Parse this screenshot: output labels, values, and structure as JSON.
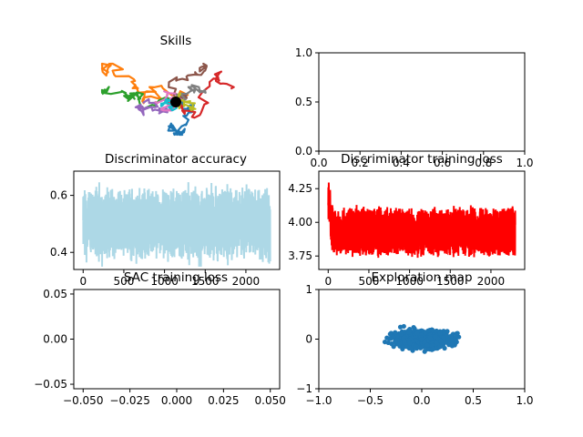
{
  "figure": {
    "background": "#ffffff"
  },
  "chart_data": [
    {
      "id": "skills",
      "type": "line",
      "title": "Skills",
      "axes_visible": false,
      "colors": [
        "#1f77b4",
        "#ff7f0e",
        "#2ca02c",
        "#d62728",
        "#9467bd",
        "#8c564b",
        "#e377c2",
        "#7f7f7f",
        "#bcbd22",
        "#17becf"
      ],
      "origin_marker": {
        "x": 0,
        "y": 0,
        "color": "#000000"
      },
      "note": "random-walk skill trajectories starting near origin"
    },
    {
      "id": "empty-top-right",
      "type": "line",
      "title": "",
      "xlim": [
        0,
        1
      ],
      "ylim": [
        0,
        1
      ],
      "xticks": [
        "0.0",
        "0.2",
        "0.4",
        "0.6",
        "0.8",
        "1.0"
      ],
      "yticks": [
        "0.0",
        "0.5",
        "1.0"
      ],
      "series": []
    },
    {
      "id": "disc-accuracy",
      "type": "line",
      "title": "Discriminator accuracy",
      "color": "#add8e6",
      "xlim": [
        -115,
        2415
      ],
      "ylim": [
        0.34,
        0.685
      ],
      "xticks": [
        "0",
        "500",
        "1000",
        "1500",
        "2000"
      ],
      "yticks": [
        "0.4",
        "0.6"
      ],
      "n_points": 2300,
      "mean": 0.5,
      "spread": 0.13
    },
    {
      "id": "disc-loss",
      "type": "line",
      "title": "Discriminator training loss",
      "color": "#ff0000",
      "xlim": [
        -115,
        2415
      ],
      "ylim": [
        3.65,
        4.38
      ],
      "xticks": [
        "0",
        "500",
        "1000",
        "1500",
        "2000"
      ],
      "yticks": [
        "3.75",
        "4.00",
        "4.25"
      ],
      "n_points": 2300,
      "mean": 3.93,
      "spread": 0.28
    },
    {
      "id": "sac-loss",
      "type": "line",
      "title": "SAC training loss",
      "xlim": [
        -0.055,
        0.055
      ],
      "ylim": [
        -0.055,
        0.055
      ],
      "xticks": [
        "−0.050",
        "−0.025",
        "0.000",
        "0.025",
        "0.050"
      ],
      "yticks": [
        "−0.05",
        "0.00",
        "0.05"
      ],
      "series": []
    },
    {
      "id": "exploration-map",
      "type": "scatter",
      "title": "Exploration map",
      "color": "#1f77b4",
      "xlim": [
        -1.0,
        1.0
      ],
      "ylim": [
        -1,
        1
      ],
      "xticks": [
        "−1.0",
        "−0.5",
        "0.0",
        "0.5",
        "1.0"
      ],
      "yticks": [
        "−1",
        "0",
        "1"
      ],
      "center": [
        0.0,
        0.0
      ],
      "std": [
        0.14,
        0.085
      ],
      "n_points": 700
    }
  ]
}
